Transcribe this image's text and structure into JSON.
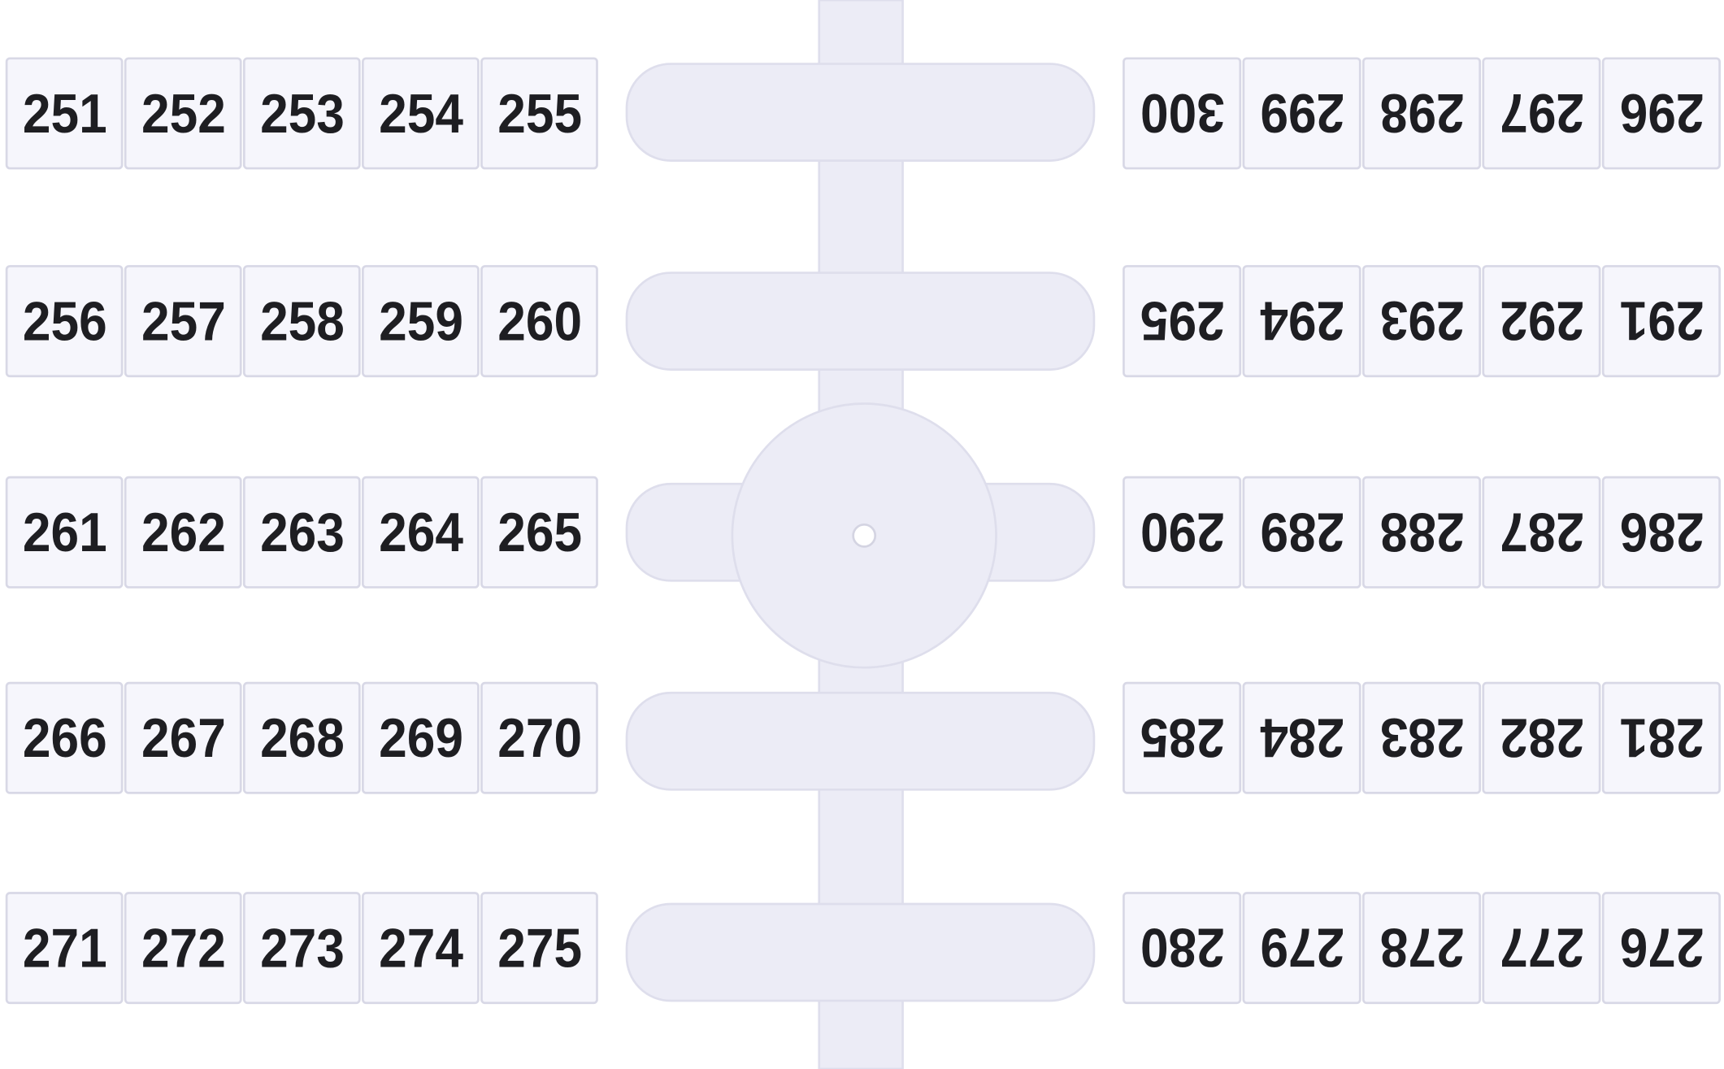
{
  "left_strips": {
    "rows": [
      [
        "251",
        "252",
        "253",
        "254",
        "255"
      ],
      [
        "256",
        "257",
        "258",
        "259",
        "260"
      ],
      [
        "261",
        "262",
        "263",
        "264",
        "265"
      ],
      [
        "266",
        "267",
        "268",
        "269",
        "270"
      ],
      [
        "271",
        "272",
        "273",
        "274",
        "275"
      ]
    ]
  },
  "right_strips": {
    "rows": [
      [
        "300",
        "299",
        "298",
        "297",
        "296"
      ],
      [
        "295",
        "294",
        "293",
        "292",
        "291"
      ],
      [
        "290",
        "289",
        "288",
        "287",
        "286"
      ],
      [
        "285",
        "284",
        "283",
        "282",
        "281"
      ],
      [
        "280",
        "279",
        "278",
        "277",
        "276"
      ]
    ]
  }
}
